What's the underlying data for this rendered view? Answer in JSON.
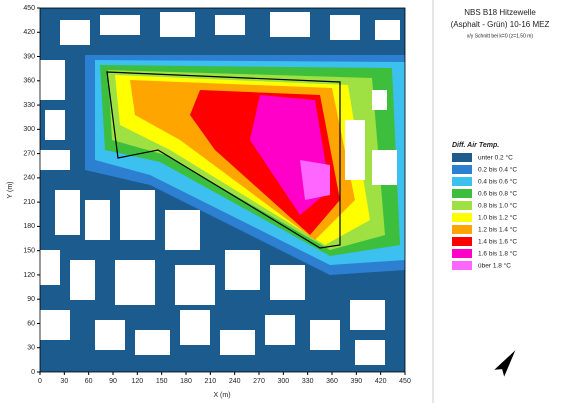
{
  "chart_data": {
    "type": "heatmap-legend",
    "title": "NBS B18 Hitzewelle",
    "subtitle": "(Asphalt - Grün)  10-16 MEZ",
    "note": "x/y Schnitt bei k=0 (z=1.50 m)",
    "x_label": "X (m)",
    "y_label": "Y (m)",
    "xlim": [
      0,
      450
    ],
    "ylim": [
      0,
      450
    ],
    "xticks": [
      0,
      30,
      60,
      90,
      120,
      150,
      180,
      210,
      240,
      270,
      300,
      330,
      360,
      390,
      420,
      450
    ],
    "yticks": [
      0,
      30,
      60,
      90,
      120,
      150,
      180,
      210,
      240,
      270,
      300,
      330,
      360,
      390,
      420,
      450
    ],
    "legend_title": "Diff. Air Temp.",
    "legend": [
      {
        "label": "unter 0.2 °C",
        "color": "#1b5b8d"
      },
      {
        "label": "0.2 bis 0.4 °C",
        "color": "#2d7fd2"
      },
      {
        "label": "0.4 bis 0.6 °C",
        "color": "#3cc0f0"
      },
      {
        "label": "0.6 bis 0.8 °C",
        "color": "#3dbf3d"
      },
      {
        "label": "0.8 bis 1.0 °C",
        "color": "#9fe042"
      },
      {
        "label": "1.0 bis 1.2 °C",
        "color": "#ffff00"
      },
      {
        "label": "1.2 bis 1.4 °C",
        "color": "#ffa500"
      },
      {
        "label": "1.4 bis 1.6 °C",
        "color": "#ff0000"
      },
      {
        "label": "1.6 bis 1.8 °C",
        "color": "#ff00c8"
      },
      {
        "label": "über 1.8 °C",
        "color": "#ff66ff"
      }
    ]
  }
}
